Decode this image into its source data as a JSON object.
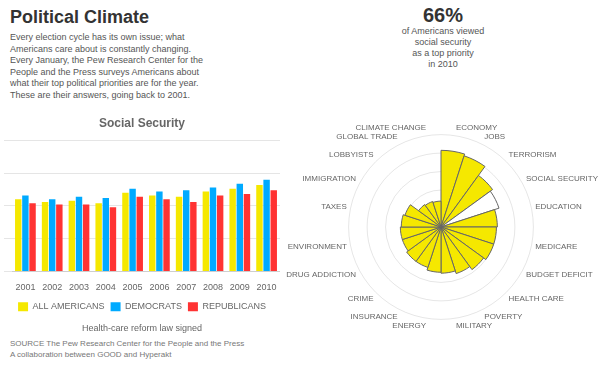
{
  "chart_data": [
    {
      "type": "bar",
      "title": "Social Security",
      "categories": [
        "2001",
        "2002",
        "2003",
        "2004",
        "2005",
        "2006",
        "2007",
        "2008",
        "2009",
        "2010"
      ],
      "series": [
        {
          "name": "ALL AMERICANS",
          "color": "#f5e800",
          "values": [
            0.55,
            0.53,
            0.54,
            0.52,
            0.6,
            0.58,
            0.57,
            0.61,
            0.63,
            0.66
          ]
        },
        {
          "name": "DEMOCRATS",
          "color": "#00aaff",
          "values": [
            0.58,
            0.55,
            0.57,
            0.56,
            0.63,
            0.61,
            0.62,
            0.64,
            0.67,
            0.7
          ]
        },
        {
          "name": "REPUBLICANS",
          "color": "#ff3333",
          "values": [
            0.52,
            0.51,
            0.51,
            0.49,
            0.57,
            0.55,
            0.53,
            0.58,
            0.59,
            0.62
          ]
        }
      ],
      "ylim": [
        0,
        1
      ],
      "yticks": [
        0,
        0.25,
        0.5,
        0.75,
        1
      ],
      "grid": true,
      "legend": "bottom",
      "tick_labels": "x",
      "annotations": [
        "Health-care reform law signed"
      ]
    },
    {
      "type": "polarArea",
      "title": "Political Climate",
      "subtitle": [
        "Every election cycle has its own issue; what",
        "Americans care about is constantly changing.",
        "Every January, the Pew Research Center for the",
        "People and the Press surveys Americans about",
        "what their top political priorities are for the year.",
        "These are their answers, going back to 2001."
      ],
      "categories": [
        "ECONOMY",
        "JOBS",
        "TERRORISM",
        "SOCIAL SECURITY",
        "EDUCATION",
        "MEDICARE",
        "BUDGET DEFICIT",
        "HEALTH CARE",
        "POVERTY",
        "MILITARY",
        "ENERGY",
        "INSURANCE",
        "CRIME",
        "DRUG ADDICTION",
        "ENVIRONMENT",
        "TAXES",
        "IMMIGRATION",
        "LOBBYISTS",
        "GLOBAL TRADE",
        "CLIMATE CHANGE"
      ],
      "values": [
        0.83,
        0.81,
        0.69,
        0.66,
        0.61,
        0.6,
        0.6,
        0.57,
        0.53,
        0.5,
        0.49,
        0.46,
        0.46,
        0.44,
        0.44,
        0.43,
        0.41,
        0.3,
        0.29,
        0.28
      ],
      "colors": [
        "#f5e800",
        "#f5e800",
        "#f5e800",
        "#ffffff",
        "#f5e800",
        "#f5e800",
        "#f5e800",
        "#f5e800",
        "#f5e800",
        "#f5e800",
        "#f5e800",
        "#f5e800",
        "#f5e800",
        "#f5e800",
        "#f5e800",
        "#f5e800",
        "#f5e800",
        "#f5e800",
        "#f5e800",
        "#f5e800"
      ],
      "ylim": [
        0,
        1
      ],
      "yticks": [
        0,
        0.2,
        0.4,
        0.6,
        0.8,
        1
      ],
      "grid": true,
      "tick_labels": "x",
      "annotations": [
        "66%",
        "of Americans viewed",
        "social security",
        "as a top priority",
        "in 2010"
      ],
      "source": [
        "SOURCE The Pew Research Center for the People and the Press",
        "A collaboration between GOOD and Hyperakt"
      ]
    }
  ]
}
